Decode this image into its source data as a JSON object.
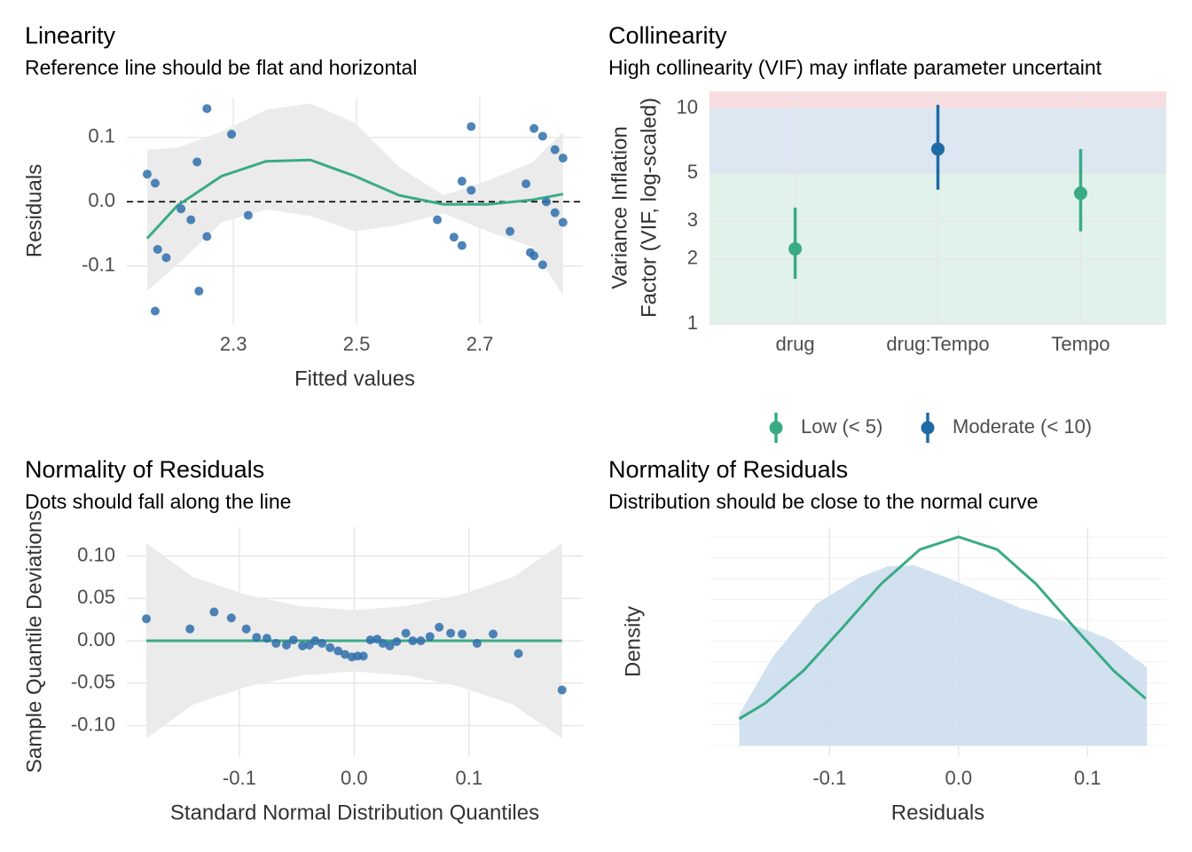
{
  "chart_data": [
    {
      "type": "scatter",
      "title": "Linearity",
      "subtitle": "Reference line should be flat and horizontal",
      "xlabel": "Fitted values",
      "ylabel": "Residuals",
      "xlim": [
        2.127,
        2.867
      ],
      "ylim": [
        -0.19,
        0.162
      ],
      "xticks": [
        2.3,
        2.5,
        2.7
      ],
      "yticks": [
        -0.1,
        {
          "value": 0,
          "label": "0.0"
        },
        0.1
      ],
      "grid": true,
      "hline": 0,
      "point_color": "#2f6fab",
      "fit_color": "#3aaa85",
      "band_color": "#ebebeb",
      "x": [
        2.16,
        2.173,
        2.177,
        2.173,
        2.191,
        2.215,
        2.231,
        2.241,
        2.244,
        2.257,
        2.257,
        2.297,
        2.324,
        2.631,
        2.658,
        2.671,
        2.671,
        2.686,
        2.686,
        2.749,
        2.775,
        2.782,
        2.788,
        2.788,
        2.802,
        2.802,
        2.808,
        2.822,
        2.822,
        2.835,
        2.835
      ],
      "y": [
        0.043,
        0.029,
        -0.074,
        -0.17,
        -0.087,
        -0.011,
        -0.028,
        0.062,
        -0.139,
        0.145,
        -0.054,
        0.105,
        -0.021,
        -0.028,
        -0.055,
        0.032,
        -0.068,
        0.117,
        0.018,
        -0.046,
        0.028,
        -0.079,
        -0.084,
        0.114,
        0.102,
        -0.098,
        0.0,
        0.081,
        -0.017,
        0.068,
        -0.032
      ],
      "fit": {
        "x": [
          2.16,
          2.209,
          2.281,
          2.353,
          2.425,
          2.497,
          2.569,
          2.641,
          2.713,
          2.785,
          2.835
        ],
        "y": [
          -0.057,
          -0.006,
          0.04,
          0.063,
          0.065,
          0.04,
          0.01,
          -0.004,
          -0.004,
          0.003,
          0.012
        ]
      },
      "band": {
        "x": [
          2.16,
          2.209,
          2.281,
          2.353,
          2.425,
          2.497,
          2.569,
          2.641,
          2.713,
          2.785,
          2.835
        ],
        "upper": [
          0.081,
          0.084,
          0.109,
          0.143,
          0.153,
          0.123,
          0.054,
          0.01,
          0.033,
          0.061,
          0.109
        ],
        "lower": [
          -0.139,
          -0.098,
          -0.032,
          -0.012,
          -0.022,
          -0.046,
          -0.036,
          -0.018,
          -0.046,
          -0.07,
          -0.146
        ]
      }
    },
    {
      "type": "vif",
      "title": "Collinearity",
      "subtitle": "High collinearity (VIF) may inflate parameter uncertaint",
      "ylabel": [
        "Variance Inflation",
        "Factor (VIF, log-scaled)"
      ],
      "categories": [
        "drug",
        "drug:Tempo",
        "Tempo"
      ],
      "log_y": true,
      "ylim": [
        1,
        12
      ],
      "yticks": [
        1,
        2,
        3,
        5,
        10
      ],
      "grid": true,
      "bands": [
        {
          "from": 1,
          "to": 5,
          "color": "#e1f2eb"
        },
        {
          "from": 5,
          "to": 10,
          "color": "#dce7f1"
        },
        {
          "from": 10,
          "to": 12,
          "color": "#f8dde1"
        }
      ],
      "series": [
        {
          "name": "Low (< 5)",
          "color": "#3aaa85",
          "values": [
            2.23,
            null,
            4.04
          ],
          "ci_low": [
            1.62,
            null,
            2.69
          ],
          "ci_high": [
            3.47,
            null,
            6.48
          ]
        },
        {
          "name": "Moderate (< 10)",
          "color": "#1f6aa5",
          "values": [
            null,
            6.48,
            null
          ],
          "ci_low": [
            null,
            4.2,
            null
          ],
          "ci_high": [
            null,
            10.4,
            null
          ]
        }
      ]
    },
    {
      "type": "scatter",
      "title": "Normality of Residuals",
      "subtitle": "Dots should fall along the line",
      "xlabel": "Standard Normal Distribution Quantiles",
      "ylabel": "Sample Quantile Deviations",
      "xlim": [
        -0.198,
        0.199
      ],
      "ylim": [
        -0.136,
        0.134
      ],
      "xticks": [
        -0.1,
        {
          "value": 0,
          "label": "0.0"
        },
        0.1
      ],
      "yticks": [
        {
          "value": -0.1,
          "label": "-0.10"
        },
        -0.05,
        {
          "value": 0,
          "label": "0.00"
        },
        0.05,
        {
          "value": 0.1,
          "label": "0.10"
        }
      ],
      "grid": true,
      "point_color": "#2f6fab",
      "fit_color": "#3aaa85",
      "band_color": "#ebebeb",
      "x": [
        -0.181,
        -0.143,
        -0.122,
        -0.107,
        -0.094,
        -0.085,
        -0.076,
        -0.068,
        -0.059,
        -0.053,
        -0.045,
        -0.039,
        -0.034,
        -0.028,
        -0.021,
        -0.014,
        -0.008,
        -0.002,
        0.003,
        0.008,
        0.014,
        0.02,
        0.025,
        0.031,
        0.037,
        0.045,
        0.051,
        0.058,
        0.066,
        0.074,
        0.084,
        0.094,
        0.107,
        0.121,
        0.143,
        0.181
      ],
      "y": [
        0.026,
        0.014,
        0.034,
        0.027,
        0.014,
        0.004,
        0.003,
        -0.003,
        -0.005,
        0.001,
        -0.006,
        -0.005,
        0.0,
        -0.003,
        -0.008,
        -0.012,
        -0.016,
        -0.019,
        -0.018,
        -0.018,
        0.001,
        0.002,
        -0.003,
        -0.006,
        -0.001,
        0.009,
        0.0,
        0.0,
        0.005,
        0.016,
        0.009,
        0.008,
        -0.003,
        0.008,
        -0.015,
        -0.058
      ],
      "fit": {
        "x": [
          -0.181,
          0.181
        ],
        "y": [
          0,
          0
        ]
      },
      "band": {
        "x": [
          -0.181,
          -0.14,
          -0.093,
          -0.047,
          0,
          0.046,
          0.092,
          0.138,
          0.181
        ],
        "upper": [
          0.115,
          0.075,
          0.054,
          0.041,
          0.036,
          0.041,
          0.054,
          0.075,
          0.115
        ],
        "lower": [
          -0.115,
          -0.075,
          -0.054,
          -0.041,
          -0.036,
          -0.041,
          -0.054,
          -0.075,
          -0.115
        ]
      }
    },
    {
      "type": "density",
      "title": "Normality of Residuals",
      "subtitle": "Distribution should be close to the normal curve",
      "xlabel": "Residuals",
      "ylabel": "Density",
      "xlim": [
        -0.193,
        0.161
      ],
      "ylim": [
        -0.24,
        4.97
      ],
      "xticks": [
        -0.1,
        {
          "value": 0,
          "label": "0.0"
        },
        0.1
      ],
      "grid": true,
      "area_color": "#c9dcec",
      "curve_color": "#3aaa85",
      "density": {
        "x": [
          -0.17,
          -0.144,
          -0.11,
          -0.076,
          -0.055,
          -0.034,
          -0.014,
          0.014,
          0.048,
          0.082,
          0.117,
          0.146
        ],
        "y": [
          0.71,
          2.02,
          3.23,
          3.84,
          4.08,
          4.1,
          3.88,
          3.54,
          3.13,
          2.83,
          2.42,
          1.78
        ]
      },
      "normal": {
        "x": [
          -0.17,
          -0.15,
          -0.12,
          -0.09,
          -0.06,
          -0.03,
          0,
          0.03,
          0.06,
          0.09,
          0.12,
          0.145
        ],
        "y": [
          0.61,
          0.96,
          1.71,
          2.68,
          3.68,
          4.46,
          4.75,
          4.46,
          3.68,
          2.68,
          1.71,
          1.07
        ]
      }
    }
  ]
}
